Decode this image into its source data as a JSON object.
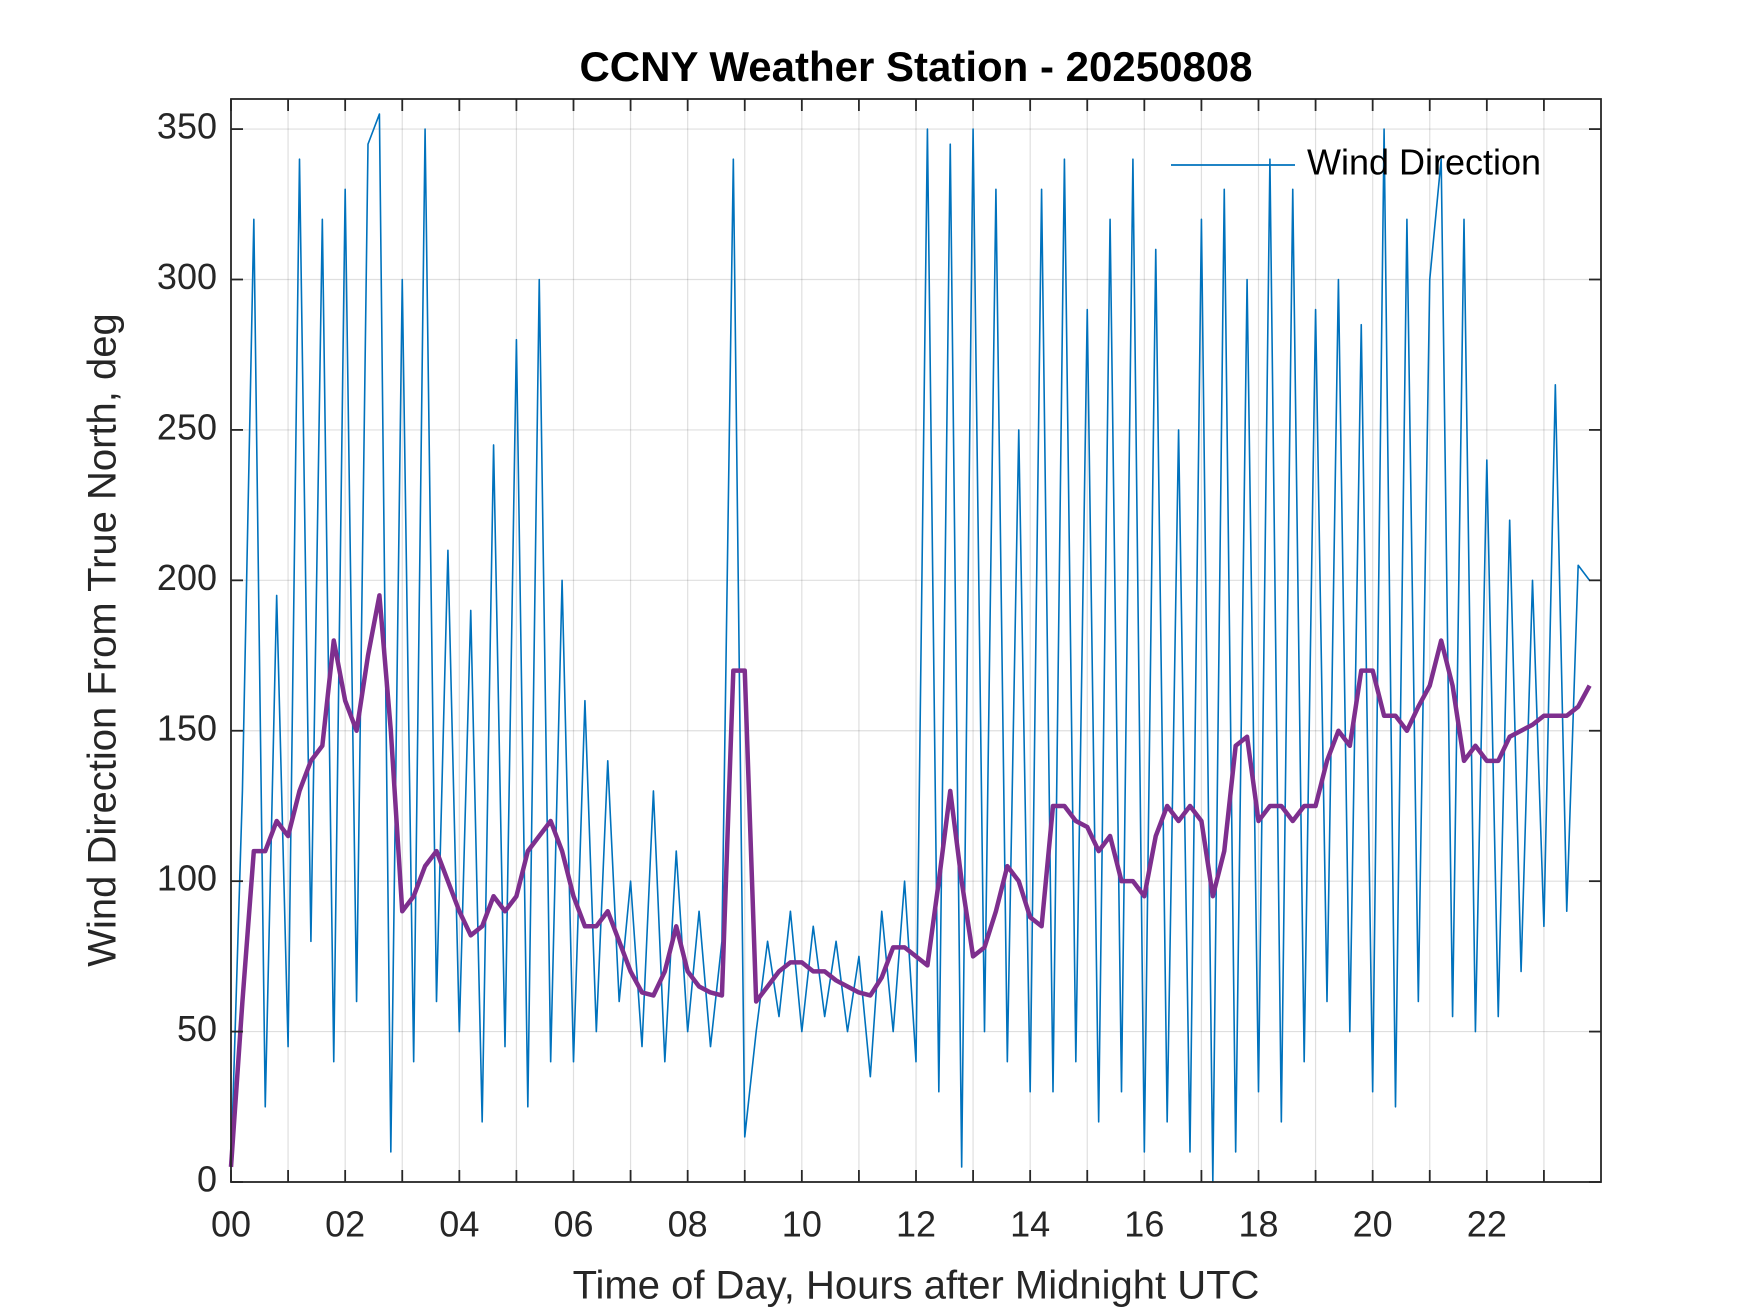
{
  "chart_data": {
    "type": "line",
    "title": "CCNY Weather Station - 20250808",
    "xlabel": "Time of Day, Hours after Midnight UTC",
    "ylabel": "Wind Direction From True North, deg",
    "xlim": [
      0,
      24
    ],
    "ylim": [
      0,
      360
    ],
    "xticks": [
      {
        "value": 0,
        "label": "00"
      },
      {
        "value": 2,
        "label": "02"
      },
      {
        "value": 4,
        "label": "04"
      },
      {
        "value": 6,
        "label": "06"
      },
      {
        "value": 8,
        "label": "08"
      },
      10,
      12,
      14,
      16,
      18,
      20,
      22
    ],
    "xminorticks": [
      1,
      3,
      5,
      7,
      9,
      11,
      13,
      15,
      17,
      19,
      21,
      23
    ],
    "yticks": [
      0,
      50,
      100,
      150,
      200,
      250,
      300,
      350
    ],
    "grid": true,
    "legend": "northeast",
    "x": [
      0,
      0.2,
      0.4,
      0.6,
      0.8,
      1,
      1.2,
      1.4,
      1.6,
      1.8,
      2,
      2.2,
      2.4,
      2.6,
      2.8,
      3,
      3.2,
      3.4,
      3.6,
      3.8,
      4,
      4.2,
      4.4,
      4.6,
      4.8,
      5,
      5.2,
      5.4,
      5.6,
      5.8,
      6,
      6.2,
      6.4,
      6.6,
      6.8,
      7,
      7.2,
      7.4,
      7.6,
      7.8,
      8,
      8.2,
      8.4,
      8.6,
      8.8,
      9,
      9.2,
      9.4,
      9.6,
      9.8,
      10,
      10.2,
      10.4,
      10.6,
      10.8,
      11,
      11.2,
      11.4,
      11.6,
      11.8,
      12,
      12.2,
      12.4,
      12.6,
      12.8,
      13,
      13.2,
      13.4,
      13.6,
      13.8,
      14,
      14.2,
      14.4,
      14.6,
      14.8,
      15,
      15.2,
      15.4,
      15.6,
      15.8,
      16,
      16.2,
      16.4,
      16.6,
      16.8,
      17,
      17.2,
      17.4,
      17.6,
      17.8,
      18,
      18.2,
      18.4,
      18.6,
      18.8,
      19,
      19.2,
      19.4,
      19.6,
      19.8,
      20,
      20.2,
      20.4,
      20.6,
      20.8,
      21,
      21.2,
      21.4,
      21.6,
      21.8,
      22,
      22.2,
      22.4,
      22.6,
      22.8,
      23,
      23.2,
      23.4,
      23.6,
      23.8
    ],
    "series": [
      {
        "name": "Wind Direction",
        "color": "#0072BD",
        "width": 1.6,
        "values": [
          5,
          130,
          320,
          25,
          195,
          45,
          340,
          80,
          320,
          40,
          330,
          60,
          345,
          355,
          10,
          300,
          40,
          350,
          60,
          210,
          50,
          190,
          20,
          245,
          45,
          280,
          25,
          300,
          40,
          200,
          40,
          160,
          50,
          140,
          60,
          100,
          45,
          130,
          40,
          110,
          50,
          90,
          45,
          80,
          340,
          15,
          50,
          80,
          55,
          90,
          50,
          85,
          55,
          80,
          50,
          75,
          35,
          90,
          50,
          100,
          40,
          350,
          30,
          345,
          5,
          350,
          50,
          330,
          40,
          250,
          30,
          330,
          30,
          340,
          40,
          290,
          20,
          320,
          30,
          340,
          10,
          310,
          20,
          250,
          10,
          320,
          0,
          330,
          10,
          300,
          30,
          340,
          20,
          330,
          40,
          290,
          60,
          300,
          50,
          285,
          30,
          350,
          25,
          320,
          60,
          300,
          340,
          55,
          320,
          50,
          240,
          55,
          220,
          70,
          200,
          85,
          265,
          90,
          205,
          200
        ]
      },
      {
        "color": "#7E2F8E",
        "width": 4.5,
        "values": [
          5,
          60,
          110,
          110,
          120,
          115,
          130,
          140,
          145,
          180,
          160,
          150,
          175,
          195,
          150,
          90,
          95,
          105,
          110,
          100,
          90,
          82,
          85,
          95,
          90,
          95,
          110,
          115,
          120,
          110,
          95,
          85,
          85,
          90,
          80,
          70,
          63,
          62,
          70,
          85,
          70,
          65,
          63,
          62,
          170,
          170,
          60,
          65,
          70,
          73,
          73,
          70,
          70,
          67,
          65,
          63,
          62,
          68,
          78,
          78,
          75,
          72,
          100,
          130,
          100,
          75,
          78,
          90,
          105,
          100,
          88,
          85,
          125,
          125,
          120,
          118,
          110,
          115,
          100,
          100,
          95,
          115,
          125,
          120,
          125,
          120,
          95,
          110,
          145,
          148,
          120,
          125,
          125,
          120,
          125,
          125,
          140,
          150,
          145,
          170,
          170,
          155,
          155,
          150,
          158,
          165,
          180,
          165,
          140,
          145,
          140,
          140,
          148,
          150,
          152,
          155,
          155,
          155,
          158,
          165
        ]
      }
    ]
  }
}
